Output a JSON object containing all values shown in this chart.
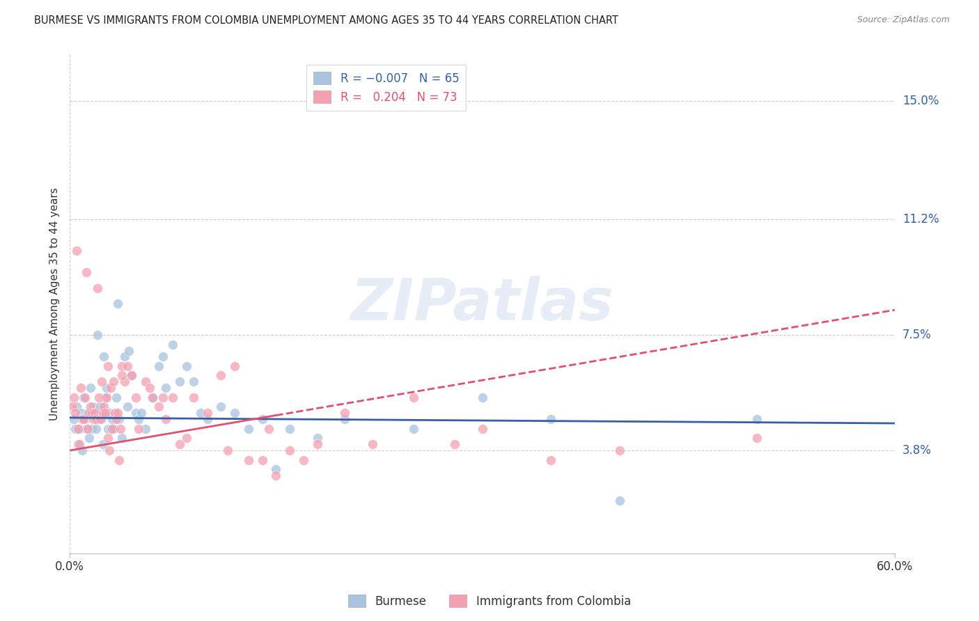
{
  "title": "BURMESE VS IMMIGRANTS FROM COLOMBIA UNEMPLOYMENT AMONG AGES 35 TO 44 YEARS CORRELATION CHART",
  "source": "Source: ZipAtlas.com",
  "ylabel_label": "Unemployment Among Ages 35 to 44 years",
  "ylabel_ticks": [
    3.8,
    7.5,
    11.2,
    15.0
  ],
  "ylabel_tick_labels": [
    "3.8%",
    "7.5%",
    "11.2%",
    "15.0%"
  ],
  "xlim": [
    0.0,
    60.0
  ],
  "ylim": [
    0.5,
    16.5
  ],
  "burmese_color": "#a8c4e0",
  "colombia_color": "#f4a0b0",
  "burmese_line_color": "#3a5fa0",
  "colombia_line_color": "#e05070",
  "watermark": "ZIPatlas",
  "burmese_x": [
    0.3,
    0.4,
    0.5,
    0.6,
    0.7,
    0.8,
    0.9,
    1.0,
    1.1,
    1.2,
    1.3,
    1.4,
    1.5,
    1.6,
    1.7,
    1.8,
    1.9,
    2.0,
    2.1,
    2.2,
    2.3,
    2.4,
    2.5,
    2.6,
    2.7,
    2.8,
    2.9,
    3.0,
    3.1,
    3.2,
    3.4,
    3.6,
    3.8,
    4.0,
    4.2,
    4.5,
    4.8,
    5.0,
    5.5,
    6.0,
    6.5,
    7.0,
    8.0,
    9.0,
    10.0,
    12.0,
    14.0,
    16.0,
    18.0,
    20.0,
    25.0,
    30.0,
    35.0,
    40.0,
    50.0,
    3.5,
    4.3,
    5.2,
    6.8,
    7.5,
    8.5,
    9.5,
    11.0,
    13.0,
    15.0
  ],
  "burmese_y": [
    4.8,
    4.5,
    5.2,
    4.0,
    4.5,
    5.0,
    3.8,
    5.5,
    4.8,
    4.5,
    5.0,
    4.2,
    5.8,
    4.5,
    5.2,
    4.8,
    4.5,
    7.5,
    5.0,
    5.2,
    4.8,
    4.0,
    6.8,
    5.5,
    5.8,
    4.5,
    5.0,
    4.5,
    4.8,
    4.5,
    5.5,
    4.8,
    4.2,
    6.8,
    5.2,
    6.2,
    5.0,
    4.8,
    4.5,
    5.5,
    6.5,
    5.8,
    6.0,
    6.0,
    4.8,
    5.0,
    4.8,
    4.5,
    4.2,
    4.8,
    4.5,
    5.5,
    4.8,
    2.2,
    4.8,
    8.5,
    7.0,
    5.0,
    6.8,
    7.2,
    6.5,
    5.0,
    5.2,
    4.5,
    3.2
  ],
  "colombia_x": [
    0.2,
    0.3,
    0.4,
    0.5,
    0.6,
    0.7,
    0.8,
    0.9,
    1.0,
    1.1,
    1.2,
    1.3,
    1.4,
    1.5,
    1.6,
    1.7,
    1.8,
    1.9,
    2.0,
    2.1,
    2.2,
    2.3,
    2.4,
    2.5,
    2.6,
    2.7,
    2.8,
    2.9,
    3.0,
    3.1,
    3.2,
    3.3,
    3.4,
    3.5,
    3.6,
    3.7,
    3.8,
    4.0,
    4.2,
    4.5,
    5.0,
    5.5,
    6.0,
    6.5,
    7.0,
    7.5,
    8.0,
    9.0,
    10.0,
    11.0,
    12.0,
    13.0,
    14.0,
    15.0,
    16.0,
    17.0,
    18.0,
    20.0,
    22.0,
    25.0,
    28.0,
    30.0,
    35.0,
    40.0,
    50.0,
    2.8,
    3.8,
    4.8,
    5.8,
    6.8,
    8.5,
    11.5,
    14.5
  ],
  "colombia_y": [
    5.2,
    5.5,
    5.0,
    10.2,
    4.5,
    4.0,
    5.8,
    4.8,
    4.8,
    5.5,
    9.5,
    4.5,
    5.0,
    5.2,
    5.0,
    4.8,
    5.0,
    4.8,
    9.0,
    5.5,
    4.8,
    6.0,
    5.0,
    5.2,
    5.0,
    5.5,
    4.2,
    3.8,
    5.8,
    4.5,
    6.0,
    5.0,
    4.8,
    5.0,
    3.5,
    4.5,
    6.5,
    6.0,
    6.5,
    6.2,
    4.5,
    6.0,
    5.5,
    5.2,
    4.8,
    5.5,
    4.0,
    5.5,
    5.0,
    6.2,
    6.5,
    3.5,
    3.5,
    3.0,
    3.8,
    3.5,
    4.0,
    5.0,
    4.0,
    5.5,
    4.0,
    4.5,
    3.5,
    3.8,
    4.2,
    6.5,
    6.2,
    5.5,
    5.8,
    5.5,
    4.2,
    3.8,
    4.5
  ]
}
